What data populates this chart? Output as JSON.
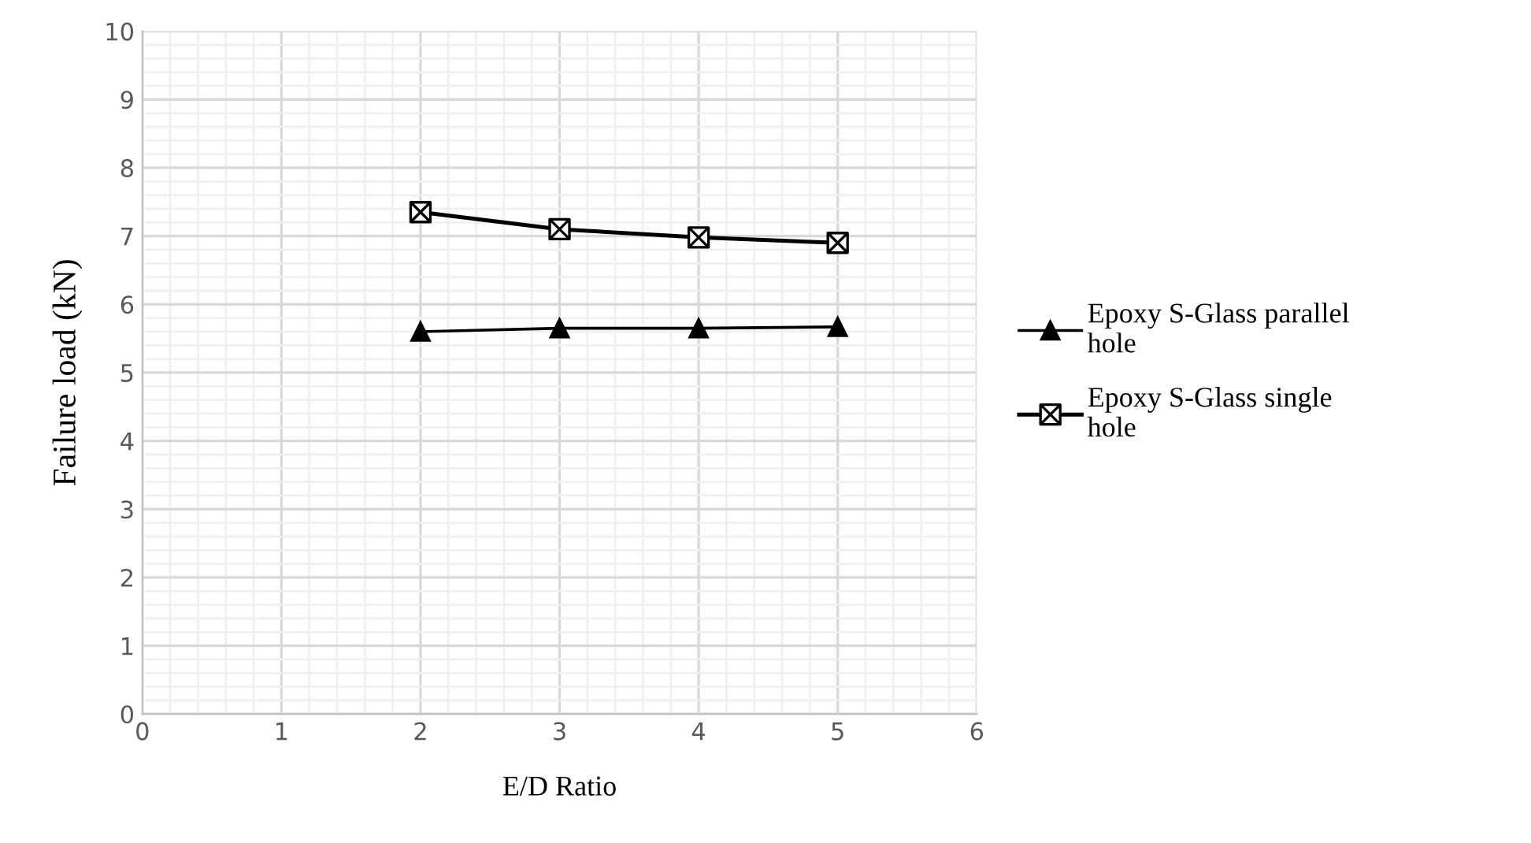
{
  "chart_data": {
    "type": "line",
    "xlabel": "E/D Ratio",
    "ylabel": "Failure load (kN)",
    "x": [
      2,
      3,
      4,
      5
    ],
    "series": [
      {
        "name": "Epoxy S-Glass parallel hole",
        "color": "#000000",
        "marker": "triangle",
        "values": [
          5.6,
          5.65,
          5.65,
          5.67
        ]
      },
      {
        "name": "Epoxy S-Glass single hole",
        "color": "#000000",
        "marker": "cross",
        "values": [
          7.35,
          7.1,
          6.98,
          6.9
        ]
      }
    ],
    "xlim": [
      0,
      6
    ],
    "xticks": [
      0,
      1,
      2,
      3,
      4,
      5,
      6
    ],
    "ylim": [
      0,
      10
    ],
    "yticks": [
      0,
      1,
      2,
      3,
      4,
      5,
      6,
      7,
      8,
      9,
      10
    ],
    "grid": true,
    "legend": "right",
    "line_style": "solid"
  }
}
